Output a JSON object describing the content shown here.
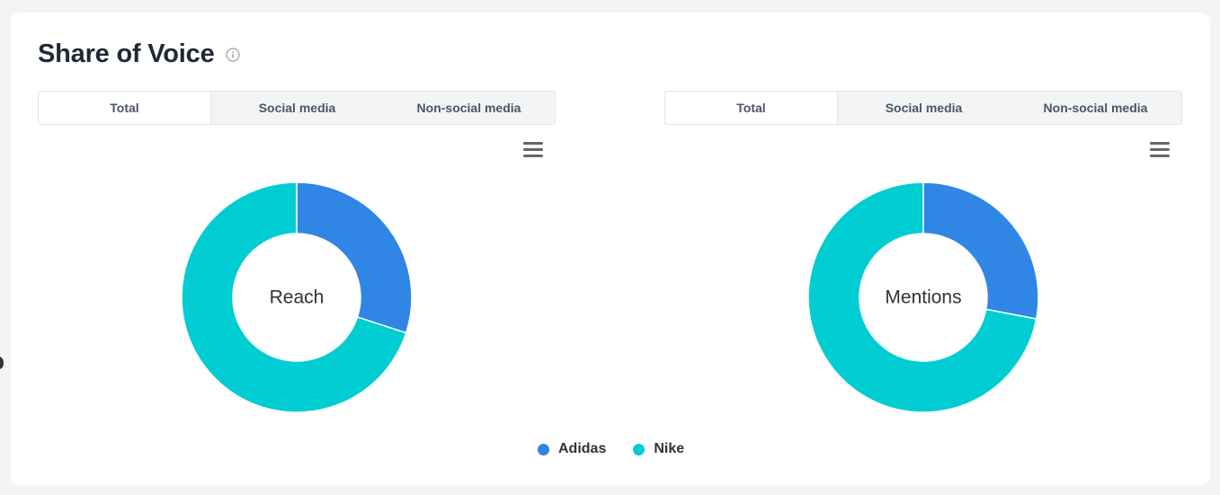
{
  "title": "Share of Voice",
  "colors": {
    "adidas": "#2f86e5",
    "nike": "#00cdd2"
  },
  "panels": [
    {
      "tabs": [
        "Total",
        "Social media",
        "Non-social media"
      ],
      "active_tab": "Total",
      "center_label": "Reach"
    },
    {
      "tabs": [
        "Total",
        "Social media",
        "Non-social media"
      ],
      "active_tab": "Total",
      "center_label": "Mentions"
    }
  ],
  "legend": [
    "Adidas",
    "Nike"
  ],
  "chart_data": [
    {
      "type": "pie",
      "title": "",
      "center_label": "Reach",
      "categories": [
        "Adidas",
        "Nike"
      ],
      "values": [
        30,
        70
      ]
    },
    {
      "type": "pie",
      "title": "",
      "center_label": "Mentions",
      "categories": [
        "Adidas",
        "Nike"
      ],
      "values": [
        28,
        72
      ]
    }
  ]
}
